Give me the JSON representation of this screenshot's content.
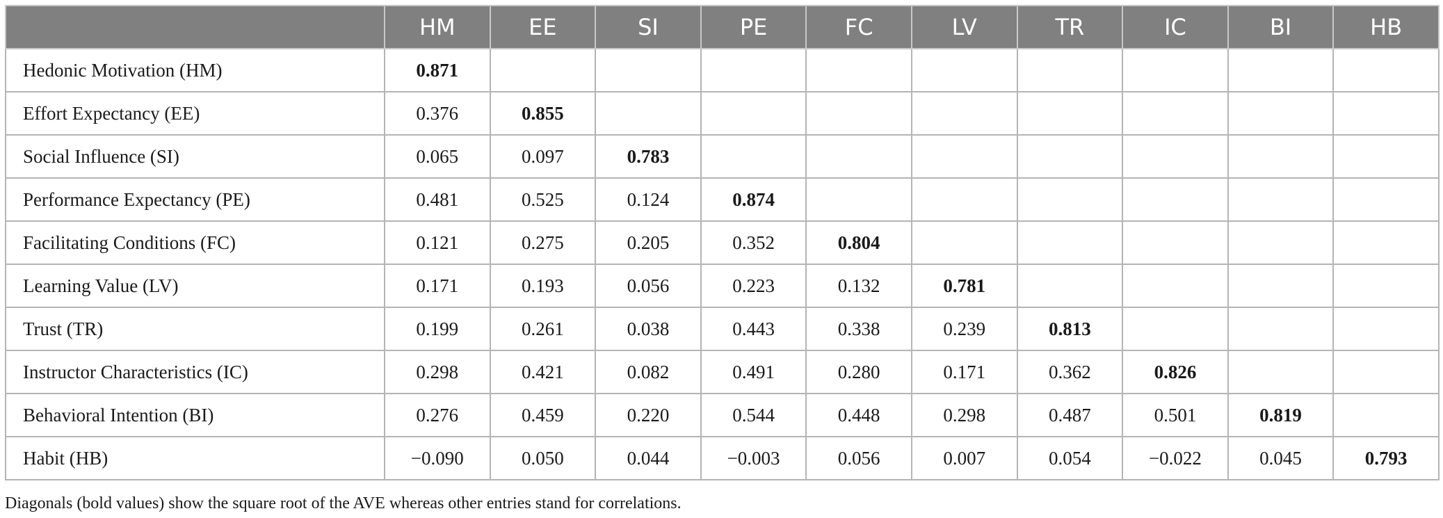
{
  "table": {
    "columns": [
      "HM",
      "EE",
      "SI",
      "PE",
      "FC",
      "LV",
      "TR",
      "IC",
      "BI",
      "HB"
    ],
    "rows": [
      {
        "label": "Hedonic Motivation (HM)",
        "values": [
          "0.871",
          "",
          "",
          "",
          "",
          "",
          "",
          "",
          "",
          ""
        ]
      },
      {
        "label": "Effort Expectancy (EE)",
        "values": [
          "0.376",
          "0.855",
          "",
          "",
          "",
          "",
          "",
          "",
          "",
          ""
        ]
      },
      {
        "label": "Social Influence (SI)",
        "values": [
          "0.065",
          "0.097",
          "0.783",
          "",
          "",
          "",
          "",
          "",
          "",
          ""
        ]
      },
      {
        "label": "Performance Expectancy (PE)",
        "values": [
          "0.481",
          "0.525",
          "0.124",
          "0.874",
          "",
          "",
          "",
          "",
          "",
          ""
        ]
      },
      {
        "label": "Facilitating Conditions (FC)",
        "values": [
          "0.121",
          "0.275",
          "0.205",
          "0.352",
          "0.804",
          "",
          "",
          "",
          "",
          ""
        ]
      },
      {
        "label": "Learning Value (LV)",
        "values": [
          "0.171",
          "0.193",
          "0.056",
          "0.223",
          "0.132",
          "0.781",
          "",
          "",
          "",
          ""
        ]
      },
      {
        "label": "Trust (TR)",
        "values": [
          "0.199",
          "0.261",
          "0.038",
          "0.443",
          "0.338",
          "0.239",
          "0.813",
          "",
          "",
          ""
        ]
      },
      {
        "label": "Instructor Characteristics (IC)",
        "values": [
          "0.298",
          "0.421",
          "0.082",
          "0.491",
          "0.280",
          "0.171",
          "0.362",
          "0.826",
          "",
          ""
        ]
      },
      {
        "label": "Behavioral Intention (BI)",
        "values": [
          "0.276",
          "0.459",
          "0.220",
          "0.544",
          "0.448",
          "0.298",
          "0.487",
          "0.501",
          "0.819",
          ""
        ]
      },
      {
        "label": "Habit (HB)",
        "values": [
          "−0.090",
          "0.050",
          "0.044",
          "−0.003",
          "0.056",
          "0.007",
          "0.054",
          "−0.022",
          "0.045",
          "0.793"
        ]
      }
    ]
  },
  "footnote": "Diagonals (bold values) show the square root of the AVE whereas other entries stand for correlations.",
  "colors": {
    "header_bg": "#808080",
    "header_text": "#ffffff",
    "grid": "#b4b4b4"
  }
}
